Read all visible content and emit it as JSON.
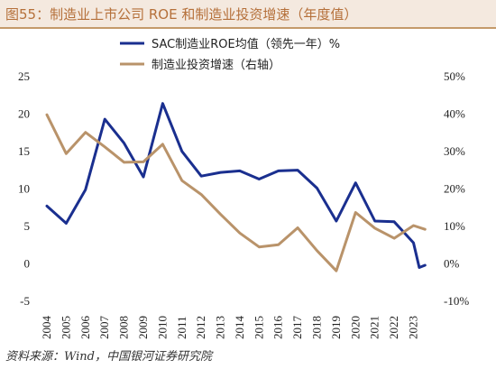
{
  "title": "图55：制造业上市公司 ROE 和制造业投资增速（年度值）",
  "source": "资料来源：Wind，中国银河证券研究院",
  "colors": {
    "roe": "#1a2f8f",
    "invest": "#b9936a",
    "title_bg": "#f4e9df",
    "title_text": "#b5703a"
  },
  "chart_data": {
    "type": "line",
    "x": [
      "2004",
      "2005",
      "2006",
      "2007",
      "2008",
      "2009",
      "2010",
      "2011",
      "2012",
      "2013",
      "2014",
      "2015",
      "2016",
      "2017",
      "2018",
      "2019",
      "2020",
      "2021",
      "2022",
      "2023"
    ],
    "series": [
      {
        "name": "SAC制造业ROE均值（领先一年）%",
        "axis": "left",
        "x_values": [
          2004,
          2005,
          2006,
          2007,
          2008,
          2009,
          2010,
          2011,
          2012,
          2013,
          2014,
          2015,
          2016,
          2017,
          2018,
          2019,
          2020,
          2021,
          2022,
          2023,
          2023.3,
          2023.6
        ],
        "values": [
          7.6,
          5.3,
          9.8,
          19.2,
          16.0,
          11.5,
          21.3,
          14.9,
          11.6,
          12.1,
          12.3,
          11.2,
          12.3,
          12.4,
          10.0,
          5.6,
          10.7,
          5.6,
          5.5,
          2.7,
          -0.6,
          -0.3
        ]
      },
      {
        "name": "制造业投资增速（右轴）",
        "axis": "right",
        "x_values": [
          2004,
          2005,
          2006,
          2007,
          2008,
          2009,
          2010,
          2011,
          2012,
          2013,
          2014,
          2015,
          2016,
          2017,
          2018,
          2019,
          2020,
          2021,
          2022,
          2023,
          2023.6
        ],
        "values": [
          39.6,
          29.2,
          34.9,
          31.0,
          26.9,
          27.0,
          31.7,
          22.0,
          18.3,
          13.0,
          8.0,
          4.3,
          4.9,
          9.4,
          3.3,
          -2.1,
          13.5,
          9.3,
          6.6,
          10.0,
          9.0
        ]
      }
    ],
    "left_axis": {
      "min": -5,
      "max": 25,
      "ticks": [
        "-5",
        "0",
        "5",
        "10",
        "15",
        "20",
        "25"
      ]
    },
    "right_axis": {
      "min": -10,
      "max": 50,
      "ticks": [
        "-10%",
        "0%",
        "10%",
        "20%",
        "30%",
        "40%",
        "50%"
      ]
    },
    "grid": false,
    "legend": "top-center"
  }
}
